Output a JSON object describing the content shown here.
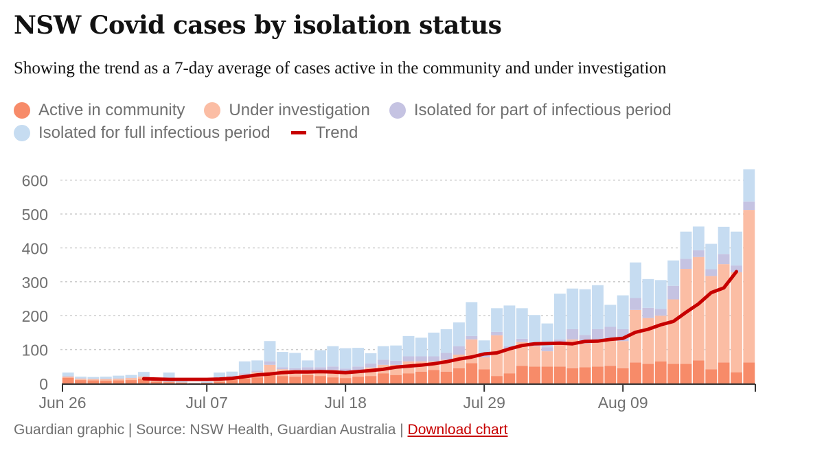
{
  "title": "NSW Covid cases by isolation status",
  "subtitle": "Showing the trend as a 7-day average of cases active in the community and under investigation",
  "legend": [
    {
      "label": "Active in community",
      "color": "#f78b69",
      "kind": "dot"
    },
    {
      "label": "Under investigation",
      "color": "#fbbda4",
      "kind": "dot"
    },
    {
      "label": "Isolated for part of infectious period",
      "color": "#c5c3e2",
      "kind": "dot"
    },
    {
      "label": "Isolated for full infectious period",
      "color": "#c6dcf1",
      "kind": "dot"
    },
    {
      "label": "Trend",
      "color": "#c70000",
      "kind": "line"
    }
  ],
  "footer": {
    "text": "Guardian graphic | Source: NSW Health, Guardian Australia | ",
    "link": "Download chart"
  },
  "chart_data": {
    "type": "bar",
    "stacked": true,
    "x_tick_labels": [
      "Jun 26",
      "Jul 07",
      "Jul 18",
      "Jul 29",
      "Aug 09"
    ],
    "x_tick_indices": [
      0,
      11,
      22,
      33,
      44
    ],
    "y_ticks": [
      0,
      100,
      200,
      300,
      400,
      500,
      600
    ],
    "ylim": [
      0,
      640
    ],
    "grid": true,
    "series": [
      {
        "name": "Active in community",
        "color": "#f78b69",
        "values": [
          17,
          10,
          9,
          8,
          9,
          10,
          14,
          5,
          3,
          2,
          1,
          2,
          5,
          10,
          15,
          18,
          25,
          22,
          20,
          25,
          22,
          18,
          16,
          20,
          22,
          30,
          25,
          30,
          35,
          40,
          35,
          45,
          60,
          42,
          22,
          30,
          52,
          50,
          50,
          50,
          45,
          48,
          50,
          52,
          45,
          62,
          58,
          65,
          58,
          58,
          68,
          42,
          62,
          33,
          62
        ]
      },
      {
        "name": "Under investigation",
        "color": "#fbbda4",
        "values": [
          3,
          4,
          4,
          5,
          5,
          6,
          6,
          3,
          2,
          1,
          0,
          0,
          5,
          10,
          10,
          15,
          30,
          20,
          20,
          15,
          18,
          22,
          20,
          20,
          25,
          25,
          30,
          35,
          30,
          25,
          35,
          40,
          70,
          35,
          120,
          70,
          70,
          60,
          45,
          65,
          85,
          70,
          75,
          80,
          80,
          155,
          135,
          135,
          190,
          280,
          305,
          275,
          290,
          295,
          450
        ]
      },
      {
        "name": "Isolated for part of infectious period",
        "color": "#c5c3e2",
        "values": [
          2,
          1,
          1,
          1,
          1,
          1,
          1,
          1,
          0,
          0,
          0,
          0,
          2,
          3,
          5,
          5,
          10,
          6,
          5,
          8,
          8,
          10,
          8,
          10,
          12,
          15,
          12,
          15,
          15,
          15,
          20,
          25,
          10,
          10,
          10,
          10,
          10,
          12,
          12,
          15,
          30,
          25,
          35,
          35,
          35,
          35,
          30,
          20,
          40,
          30,
          20,
          20,
          30,
          20,
          25
        ]
      },
      {
        "name": "Isolated for full infectious period",
        "color": "#c6dcf1",
        "values": [
          10,
          5,
          5,
          6,
          8,
          8,
          13,
          0,
          27,
          3,
          1,
          3,
          20,
          12,
          35,
          30,
          60,
          45,
          45,
          20,
          50,
          60,
          60,
          55,
          30,
          40,
          45,
          60,
          55,
          70,
          70,
          70,
          100,
          40,
          70,
          120,
          90,
          80,
          70,
          135,
          120,
          135,
          130,
          65,
          100,
          105,
          85,
          85,
          75,
          80,
          70,
          75,
          80,
          100,
          95
        ]
      },
      {
        "name": "Trend",
        "type": "line",
        "color": "#c70000",
        "start_index": 6,
        "values": [
          14,
          13,
          12,
          12,
          12,
          12,
          13,
          15,
          20,
          25,
          28,
          32,
          34,
          34,
          35,
          34,
          32,
          35,
          38,
          42,
          48,
          51,
          54,
          58,
          64,
          72,
          78,
          87,
          90,
          102,
          112,
          117,
          118,
          119,
          117,
          124,
          125,
          130,
          133,
          151,
          160,
          173,
          183,
          210,
          235,
          268,
          282,
          330
        ]
      }
    ]
  }
}
